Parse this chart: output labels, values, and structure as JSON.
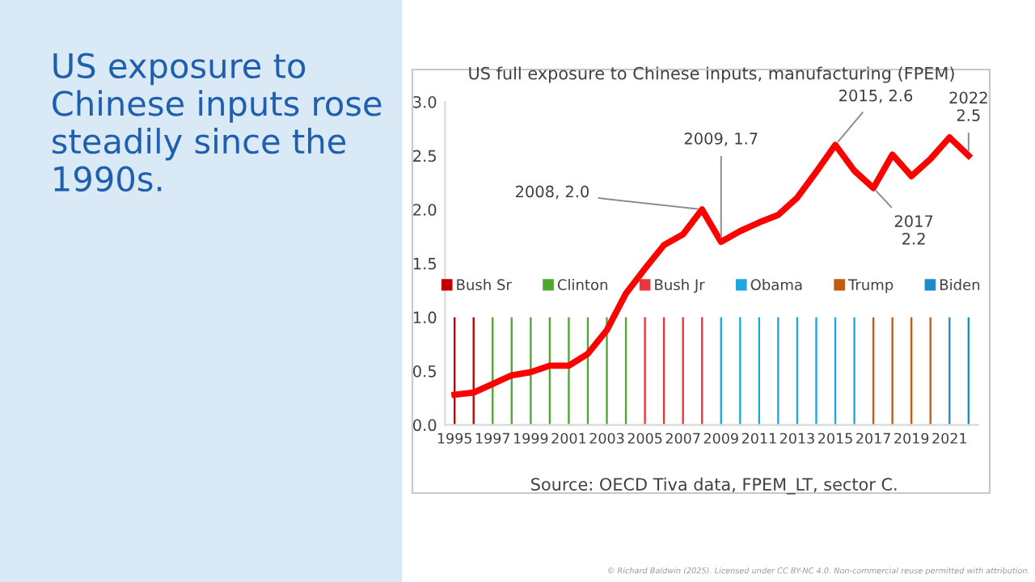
{
  "chart_data": {
    "type": "bar",
    "title": "US full exposure to Chinese inputs, manufacturing (FPEM)",
    "series": [
      {
        "name": "Bush Sr",
        "color": "#c00000",
        "x": [
          1995,
          1996
        ],
        "values": [
          1.0,
          1.0
        ]
      },
      {
        "name": "Clinton",
        "color": "#4ea72e",
        "x": [
          1997,
          1998,
          1999,
          2000,
          2001,
          2002,
          2003,
          2004
        ],
        "values": [
          1.0,
          1.0,
          1.0,
          1.0,
          1.0,
          1.0,
          1.0,
          1.0
        ]
      },
      {
        "name": "Bush Jr",
        "color": "#e8383d",
        "x": [
          2005,
          2006,
          2007,
          2008
        ],
        "values": [
          1.0,
          1.0,
          1.0,
          1.0
        ]
      },
      {
        "name": "Obama",
        "color": "#1ea7e1",
        "x": [
          2009,
          2010,
          2011,
          2012,
          2013,
          2014,
          2015,
          2016
        ],
        "values": [
          1.0,
          1.0,
          1.0,
          1.0,
          1.0,
          1.0,
          1.0,
          1.0
        ]
      },
      {
        "name": "Trump",
        "color": "#c55a11",
        "x": [
          2017,
          2018,
          2019,
          2020
        ],
        "values": [
          1.0,
          1.0,
          1.0,
          1.0
        ]
      },
      {
        "name": "Biden",
        "color": "#1f8bc9",
        "x": [
          2021,
          2022
        ],
        "values": [
          1.0,
          1.0
        ]
      },
      {
        "type": "line",
        "color": "#ff0000",
        "x": [
          1995,
          1996,
          1997,
          1998,
          1999,
          2000,
          2001,
          2002,
          2003,
          2004,
          2005,
          2006,
          2007,
          2008,
          2009,
          2010,
          2011,
          2012,
          2013,
          2014,
          2015,
          2016,
          2017,
          2018,
          2019,
          2020,
          2021,
          2022
        ],
        "values": [
          0.28,
          0.3,
          0.38,
          0.46,
          0.49,
          0.55,
          0.55,
          0.66,
          0.88,
          1.22,
          1.45,
          1.67,
          1.77,
          2.0,
          1.7,
          1.8,
          1.88,
          1.95,
          2.11,
          2.35,
          2.6,
          2.36,
          2.2,
          2.51,
          2.31,
          2.47,
          2.67,
          2.5
        ]
      }
    ],
    "xlim": [
      1994.5,
      2022.5
    ],
    "xticks": [
      1995,
      1997,
      1999,
      2001,
      2003,
      2005,
      2007,
      2009,
      2011,
      2013,
      2015,
      2017,
      2019,
      2021
    ],
    "ylim": [
      0,
      3.0
    ],
    "yticks": [
      {
        "value": 0,
        "label": "0.0"
      },
      {
        "value": 0.5,
        "label": "0.5"
      },
      {
        "value": 1.0,
        "label": "1.0"
      },
      {
        "value": 1.5,
        "label": "1.5"
      },
      {
        "value": 2.0,
        "label": "2.0"
      },
      {
        "value": 2.5,
        "label": "2.5"
      },
      {
        "value": 3.0,
        "label": "3.0"
      }
    ],
    "legend": "center",
    "grid": false,
    "annotations": [
      "US exposure to Chinese inputs rose steadily since the 1990s.",
      "Source: OECD Tiva data, FPEM_LT, sector C.",
      "© Richard Baldwin (2025). Licensed under CC BY-NC 4.0. Non-commercial reuse permitted with attribution.",
      {
        "text": "2008, 2.0",
        "x": 2008,
        "y": 2.0
      },
      {
        "text": "2009, 1.7",
        "x": 2009,
        "y": 1.7
      },
      {
        "text": "2015, 2.6",
        "x": 2015,
        "y": 2.6
      },
      {
        "text": "2017\n2.2",
        "x": 2017,
        "y": 2.2
      },
      {
        "text": "2022\n2.5",
        "x": 2022,
        "y": 2.5
      }
    ]
  }
}
